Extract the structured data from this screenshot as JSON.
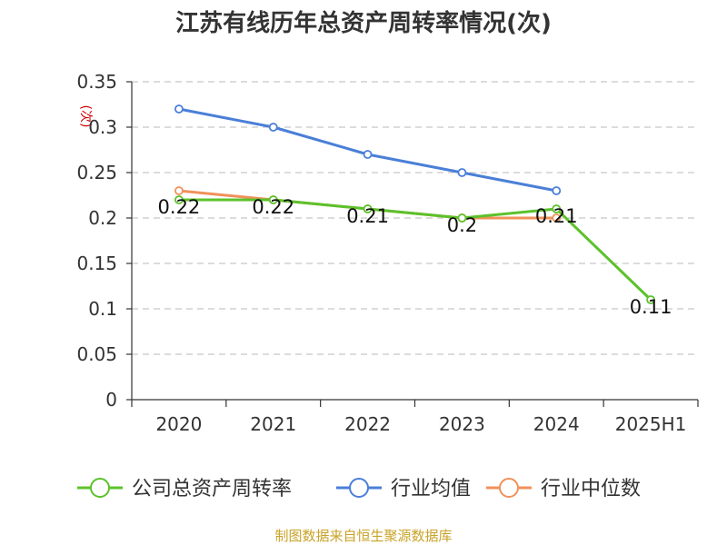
{
  "chart_data": {
    "type": "line",
    "title": "江苏有线历年总资产周转率情况(次)",
    "ylabel": "(次)",
    "xlabel": "",
    "categories": [
      "2020",
      "2021",
      "2022",
      "2023",
      "2024",
      "2025H1"
    ],
    "yticks": [
      "0.35",
      "0.3",
      "0.25",
      "0.2",
      "0.15",
      "0.1",
      "0.05",
      "0"
    ],
    "ylim": [
      0,
      0.35
    ],
    "grid": true,
    "legend_position": "bottom",
    "series": [
      {
        "name": "公司总资产周转率",
        "color": "#5cc22b",
        "values": [
          0.22,
          0.22,
          0.21,
          0.2,
          0.21,
          0.11
        ],
        "labels": [
          "0.22",
          "0.22",
          "0.21",
          "0.2",
          "0.21",
          "0.11"
        ]
      },
      {
        "name": "行业均值",
        "color": "#4a7fd8",
        "values": [
          0.32,
          0.3,
          0.27,
          0.25,
          0.23,
          null
        ]
      },
      {
        "name": "行业中位数",
        "color": "#f0915a",
        "values": [
          0.23,
          0.22,
          0.21,
          0.2,
          0.2,
          null
        ]
      }
    ],
    "source": "制图数据来自恒生聚源数据库"
  }
}
